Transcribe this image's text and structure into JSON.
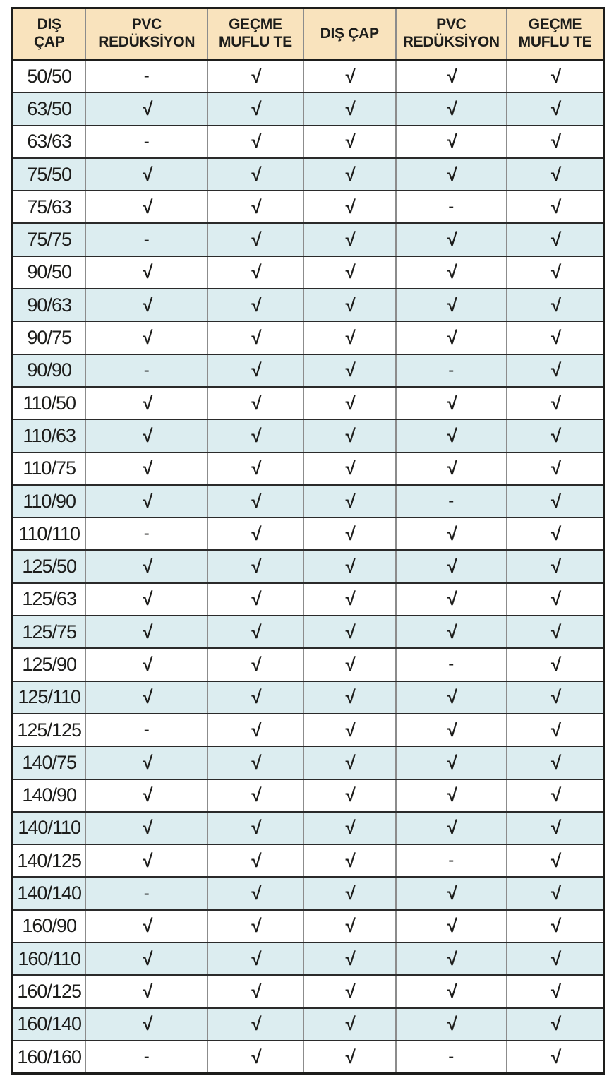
{
  "table": {
    "headers": [
      "DIŞ\nÇAP",
      "PVC\nREDÜKSİYON",
      "GEÇME\nMUFLU TE",
      "DIŞ ÇAP",
      "PVC\nREDÜKSİYON",
      "GEÇME\nMUFLU TE"
    ],
    "check_symbol": "√",
    "dash_symbol": "-",
    "rows": [
      {
        "size": "50/50",
        "values": [
          "-",
          "√",
          "√",
          "√",
          "√"
        ]
      },
      {
        "size": "63/50",
        "values": [
          "√",
          "√",
          "√",
          "√",
          "√"
        ]
      },
      {
        "size": "63/63",
        "values": [
          "-",
          "√",
          "√",
          "√",
          "√"
        ]
      },
      {
        "size": "75/50",
        "values": [
          "√",
          "√",
          "√",
          "√",
          "√"
        ]
      },
      {
        "size": "75/63",
        "values": [
          "√",
          "√",
          "√",
          "-",
          "√"
        ]
      },
      {
        "size": "75/75",
        "values": [
          "-",
          "√",
          "√",
          "√",
          "√"
        ]
      },
      {
        "size": "90/50",
        "values": [
          "√",
          "√",
          "√",
          "√",
          "√"
        ]
      },
      {
        "size": "90/63",
        "values": [
          "√",
          "√",
          "√",
          "√",
          "√"
        ]
      },
      {
        "size": "90/75",
        "values": [
          "√",
          "√",
          "√",
          "√",
          "√"
        ]
      },
      {
        "size": "90/90",
        "values": [
          "-",
          "√",
          "√",
          "-",
          "√"
        ]
      },
      {
        "size": "110/50",
        "values": [
          "√",
          "√",
          "√",
          "√",
          "√"
        ]
      },
      {
        "size": "110/63",
        "values": [
          "√",
          "√",
          "√",
          "√",
          "√"
        ]
      },
      {
        "size": "110/75",
        "values": [
          "√",
          "√",
          "√",
          "√",
          "√"
        ]
      },
      {
        "size": "110/90",
        "values": [
          "√",
          "√",
          "√",
          "-",
          "√"
        ]
      },
      {
        "size": "110/110",
        "values": [
          "-",
          "√",
          "√",
          "√",
          "√"
        ]
      },
      {
        "size": "125/50",
        "values": [
          "√",
          "√",
          "√",
          "√",
          "√"
        ]
      },
      {
        "size": "125/63",
        "values": [
          "√",
          "√",
          "√",
          "√",
          "√"
        ]
      },
      {
        "size": "125/75",
        "values": [
          "√",
          "√",
          "√",
          "√",
          "√"
        ]
      },
      {
        "size": "125/90",
        "values": [
          "√",
          "√",
          "√",
          "-",
          "√"
        ]
      },
      {
        "size": "125/110",
        "values": [
          "√",
          "√",
          "√",
          "√",
          "√"
        ]
      },
      {
        "size": "125/125",
        "values": [
          "-",
          "√",
          "√",
          "√",
          "√"
        ]
      },
      {
        "size": "140/75",
        "values": [
          "√",
          "√",
          "√",
          "√",
          "√"
        ]
      },
      {
        "size": "140/90",
        "values": [
          "√",
          "√",
          "√",
          "√",
          "√"
        ]
      },
      {
        "size": "140/110",
        "values": [
          "√",
          "√",
          "√",
          "√",
          "√"
        ]
      },
      {
        "size": "140/125",
        "values": [
          "√",
          "√",
          "√",
          "-",
          "√"
        ]
      },
      {
        "size": "140/140",
        "values": [
          "-",
          "√",
          "√",
          "√",
          "√"
        ]
      },
      {
        "size": "160/90",
        "values": [
          "√",
          "√",
          "√",
          "√",
          "√"
        ]
      },
      {
        "size": "160/110",
        "values": [
          "√",
          "√",
          "√",
          "√",
          "√"
        ]
      },
      {
        "size": "160/125",
        "values": [
          "√",
          "√",
          "√",
          "√",
          "√"
        ]
      },
      {
        "size": "160/140",
        "values": [
          "√",
          "√",
          "√",
          "√",
          "√"
        ]
      },
      {
        "size": "160/160",
        "values": [
          "-",
          "√",
          "√",
          "-",
          "√"
        ]
      }
    ]
  },
  "colors": {
    "header_bg": "#f9e3bd",
    "alt_row_bg": "#dcedf0",
    "row_bg": "#ffffff",
    "text": "#1d1d1b",
    "outer_border": "#1d1d1b",
    "vertical_divider": "#8c8c8c",
    "horizontal_divider": "#2a2a2a"
  }
}
